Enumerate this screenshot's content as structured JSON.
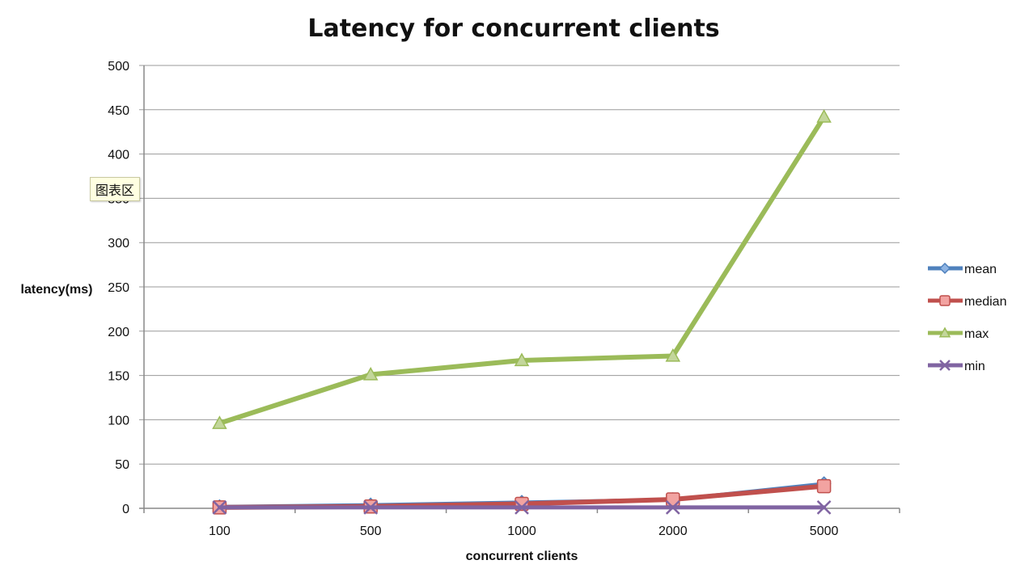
{
  "chart_data": {
    "type": "line",
    "title": "Latency for concurrent clients",
    "xlabel": "concurrent clients",
    "ylabel": "latency(ms)",
    "categories": [
      "100",
      "500",
      "1000",
      "2000",
      "5000"
    ],
    "ylim": [
      0,
      500
    ],
    "yticks": [
      "0",
      "50",
      "100",
      "150",
      "200",
      "250",
      "300",
      "350",
      "400",
      "450",
      "500"
    ],
    "grid": true,
    "legend_position": "right",
    "series": [
      {
        "name": "mean",
        "values": [
          2,
          4,
          7,
          10,
          28
        ],
        "color": "#4f81bd",
        "marker": "diamond"
      },
      {
        "name": "median",
        "values": [
          1,
          2,
          5,
          10,
          25
        ],
        "color": "#c0504d",
        "marker": "square"
      },
      {
        "name": "max",
        "values": [
          96,
          151,
          167,
          172,
          442
        ],
        "color": "#9bbb59",
        "marker": "triangle"
      },
      {
        "name": "min",
        "values": [
          1,
          1,
          1,
          1,
          1
        ],
        "color": "#8064a2",
        "marker": "x"
      }
    ]
  },
  "tooltip": {
    "text": "图表区"
  }
}
